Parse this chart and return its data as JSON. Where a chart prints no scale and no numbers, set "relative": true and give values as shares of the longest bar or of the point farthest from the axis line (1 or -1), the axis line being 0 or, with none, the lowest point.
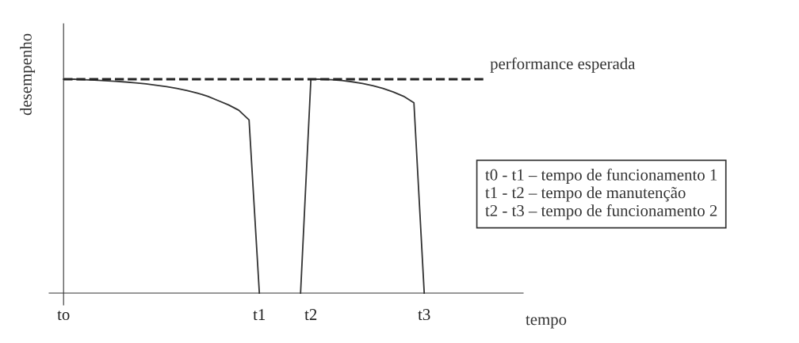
{
  "chart_data": {
    "type": "line",
    "relative": true,
    "xlabel": "tempo",
    "ylabel": "desempenho",
    "categories": [
      "to",
      null,
      null,
      null,
      null,
      null,
      null,
      null,
      null,
      null,
      null,
      null,
      null,
      null,
      null,
      null,
      null,
      null,
      null,
      "t1",
      null,
      null,
      null,
      null,
      "t2",
      null,
      null,
      null,
      null,
      null,
      null,
      null,
      null,
      null,
      null,
      "t3",
      null,
      null,
      null,
      null,
      null,
      null,
      null,
      null,
      null
    ],
    "series": [
      {
        "color": "#333333",
        "values": [
          1,
          1,
          0.998,
          0.996,
          0.993,
          0.99,
          0.987,
          0.983,
          0.978,
          0.972,
          0.965,
          0.957,
          0.947,
          0.935,
          0.92,
          0.9,
          0.88,
          0.855,
          0.81,
          0,
          null,
          null,
          null,
          null,
          null,
          null,
          null,
          null,
          null,
          null,
          null,
          null,
          null,
          null,
          null,
          null,
          null,
          null,
          null,
          null,
          null,
          null,
          null,
          null,
          null
        ]
      },
      {
        "color": "#333333",
        "values": [
          null,
          null,
          null,
          null,
          null,
          null,
          null,
          null,
          null,
          null,
          null,
          null,
          null,
          null,
          null,
          null,
          null,
          null,
          null,
          null,
          null,
          null,
          null,
          0,
          1,
          1,
          0.998,
          0.994,
          0.988,
          0.98,
          0.97,
          0.957,
          0.94,
          0.92,
          0.89,
          0,
          null,
          null,
          null,
          null,
          null,
          null,
          null,
          null,
          null
        ]
      }
    ],
    "ref_lines": [
      {
        "axis": "y",
        "value": 1,
        "label": "performance esperada",
        "line_style": "dashed",
        "color": "#222222"
      }
    ],
    "annotations": [
      "t0 - t1 – tempo de funcionamento 1",
      "t1 - t2 – tempo de manutenção",
      "t2 - t3 – tempo de funcionamento 2"
    ],
    "grid": false,
    "legend": false,
    "marker": "none",
    "line_style": "solid"
  }
}
